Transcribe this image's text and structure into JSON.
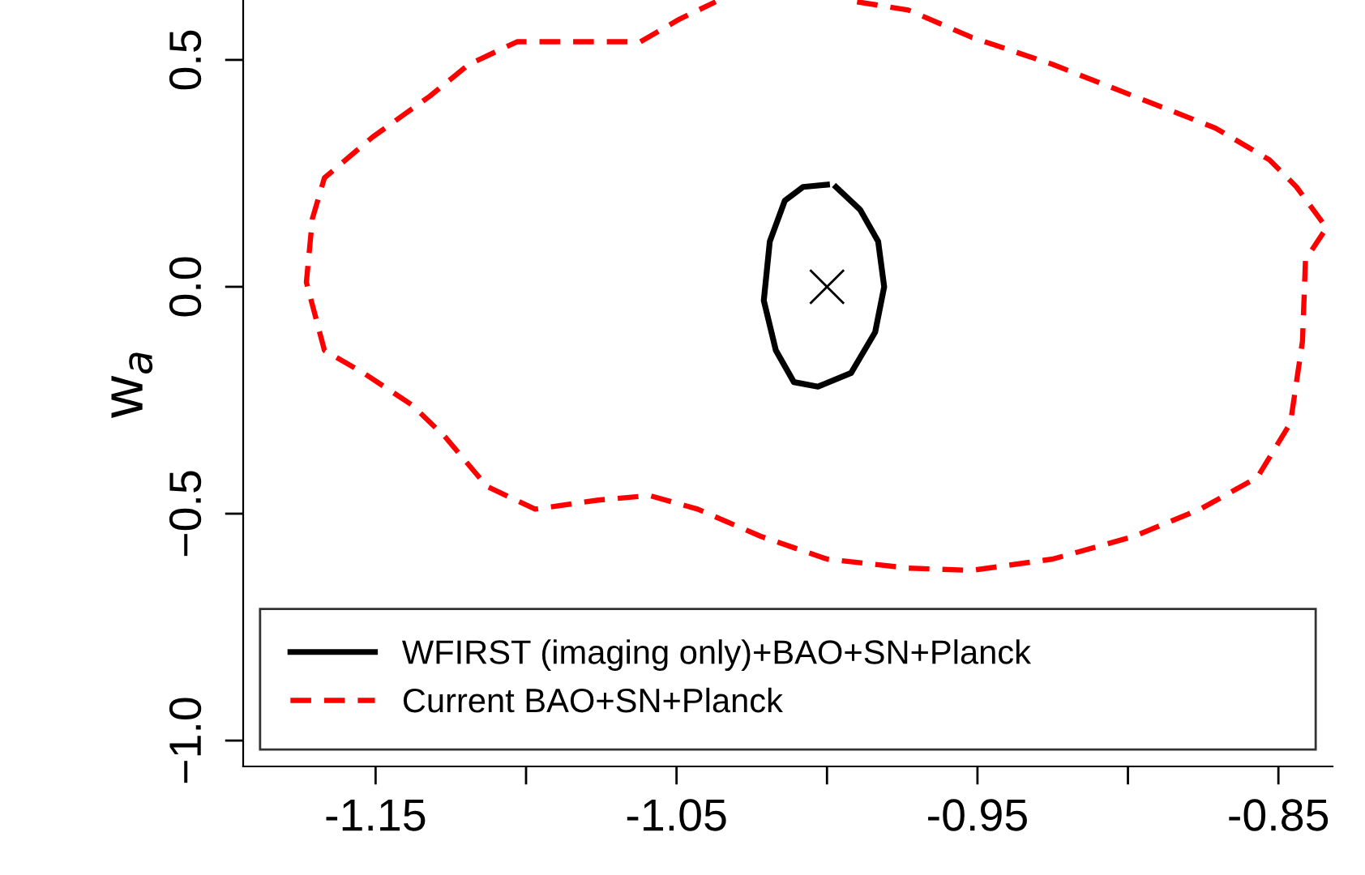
{
  "chart_data": {
    "type": "line",
    "ylabel": "w$_{a}$",
    "xlim": [
      -1.194,
      -0.832
    ],
    "ylim": [
      -1.057,
      0.632
    ],
    "xticks": [
      -1.15,
      {
        "value": -1.1,
        "label": null
      },
      -1.05,
      {
        "value": -1.0,
        "label": null
      },
      -0.95,
      {
        "value": -0.9,
        "label": null
      },
      -0.85
    ],
    "yticks": [
      {
        "value": -1.0,
        "label": "−1.0"
      },
      {
        "value": -0.5,
        "label": "−0.5"
      },
      {
        "value": 0.0,
        "label": "0.0"
      },
      {
        "value": 0.5,
        "label": "0.5"
      }
    ],
    "legend": "bottom left",
    "grid": false,
    "series": [
      {
        "name": "WFIRST (imaging only)+BAO+SN+Planck",
        "color": "#000000",
        "line_style": "solid",
        "x": [
          -0.997,
          -0.989,
          -0.983,
          -0.981,
          -0.984,
          -0.992,
          -1.003,
          -1.011,
          -1.017,
          -1.021,
          -1.019,
          -1.014,
          -1.008,
          -1.0
        ],
        "values": [
          0.22,
          0.17,
          0.1,
          0.0,
          -0.1,
          -0.19,
          -0.22,
          -0.21,
          -0.14,
          -0.03,
          0.1,
          0.19,
          0.22,
          0.225
        ]
      },
      {
        "name": "Current BAO+SN+Planck",
        "color": "#ff0000",
        "line_style": "dashed",
        "x": [
          -0.99,
          -0.973,
          -0.952,
          -0.925,
          -0.898,
          -0.871,
          -0.853,
          -0.844,
          -0.834,
          -0.841,
          -0.842,
          -0.846,
          -0.857,
          -0.876,
          -0.898,
          -0.925,
          -0.952,
          -0.973,
          -1.0,
          -1.022,
          -1.043,
          -1.059,
          -1.076,
          -1.097,
          -1.113,
          -1.127,
          -1.138,
          -1.154,
          -1.167,
          -1.173,
          -1.171,
          -1.167,
          -1.151,
          -1.132,
          -1.119,
          -1.103,
          -1.081,
          -1.062,
          -1.049,
          -1.037
        ],
        "values": [
          0.628,
          0.61,
          0.55,
          0.49,
          0.42,
          0.35,
          0.28,
          0.22,
          0.13,
          0.06,
          -0.12,
          -0.3,
          -0.42,
          -0.49,
          -0.55,
          -0.6,
          -0.625,
          -0.62,
          -0.6,
          -0.55,
          -0.49,
          -0.46,
          -0.47,
          -0.49,
          -0.44,
          -0.33,
          -0.26,
          -0.19,
          -0.14,
          0.01,
          0.15,
          0.24,
          0.33,
          0.42,
          0.49,
          0.54,
          0.54,
          0.54,
          0.59,
          0.628
        ]
      },
      {
        "type": "scatter",
        "marker": "cross",
        "color": "#000000",
        "x": [
          -1.0
        ],
        "values": [
          0.0
        ]
      }
    ]
  }
}
